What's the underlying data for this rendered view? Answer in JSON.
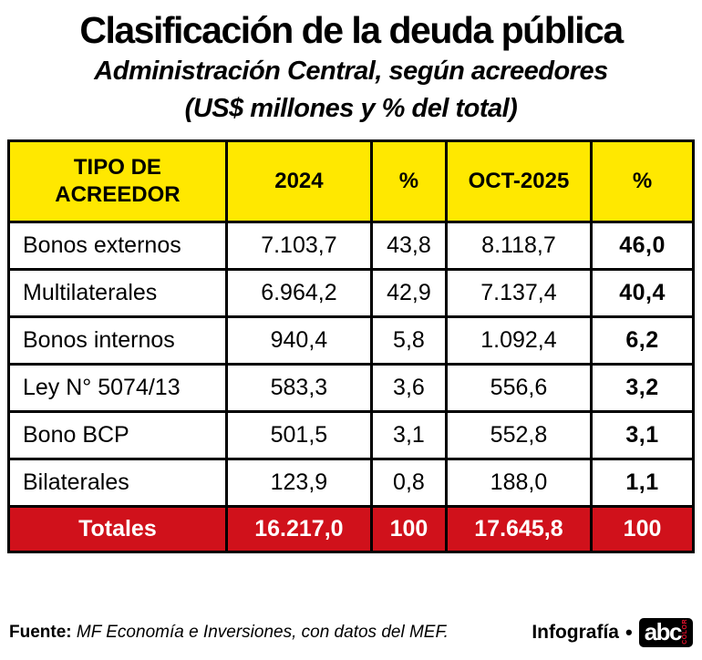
{
  "colors": {
    "header_bg": "#FFE800",
    "totals_bg": "#D0111B",
    "border": "#000000",
    "logo_bg": "#000000",
    "logo_red": "#E8112D"
  },
  "header": {
    "title": "Clasificación de la deuda pública",
    "subtitle1": "Administración Central, según acreedores",
    "subtitle2": "(US$ millones y % del total)"
  },
  "table": {
    "columns": [
      "TIPO DE ACREEDOR",
      "2024",
      "%",
      "OCT-2025",
      "%"
    ],
    "rows": [
      {
        "label": "Bonos externos",
        "y2024": "7.103,7",
        "pct2024": "43,8",
        "oct2025": "8.118,7",
        "pct2025": "46,0"
      },
      {
        "label": "Multilaterales",
        "y2024": "6.964,2",
        "pct2024": "42,9",
        "oct2025": "7.137,4",
        "pct2025": "40,4"
      },
      {
        "label": "Bonos internos",
        "y2024": "940,4",
        "pct2024": "5,8",
        "oct2025": "1.092,4",
        "pct2025": "6,2"
      },
      {
        "label": "Ley N° 5074/13",
        "y2024": "583,3",
        "pct2024": "3,6",
        "oct2025": "556,6",
        "pct2025": "3,2"
      },
      {
        "label": "Bono BCP",
        "y2024": "501,5",
        "pct2024": "3,1",
        "oct2025": "552,8",
        "pct2025": "3,1"
      },
      {
        "label": "Bilaterales",
        "y2024": "123,9",
        "pct2024": "0,8",
        "oct2025": "188,0",
        "pct2025": "1,1"
      }
    ],
    "totals": {
      "label": "Totales",
      "y2024": "16.217,0",
      "pct2024": "100",
      "oct2025": "17.645,8",
      "pct2025": "100"
    }
  },
  "footer": {
    "source_label": "Fuente:",
    "source_text": "MF Economía e Inversiones, con datos del MEF.",
    "credit_label": "Infografía",
    "bullet": "•",
    "logo_text": "abc",
    "logo_sub": "COLOR"
  },
  "chart_data": {
    "type": "table",
    "title": "Clasificación de la deuda pública",
    "subtitle": "Administración Central, según acreedores (US$ millones y % del total)",
    "columns": [
      "TIPO DE ACREEDOR",
      "2024",
      "%",
      "OCT-2025",
      "%"
    ],
    "rows": [
      [
        "Bonos externos",
        7103.7,
        43.8,
        8118.7,
        46.0
      ],
      [
        "Multilaterales",
        6964.2,
        42.9,
        7137.4,
        40.4
      ],
      [
        "Bonos internos",
        940.4,
        5.8,
        1092.4,
        6.2
      ],
      [
        "Ley N° 5074/13",
        583.3,
        3.6,
        556.6,
        3.2
      ],
      [
        "Bono BCP",
        501.5,
        3.1,
        552.8,
        3.1
      ],
      [
        "Bilaterales",
        123.9,
        0.8,
        188.0,
        1.1
      ]
    ],
    "totals": [
      "Totales",
      16217.0,
      100,
      17645.8,
      100
    ],
    "source": "MF Economía e Inversiones, con datos del MEF."
  }
}
